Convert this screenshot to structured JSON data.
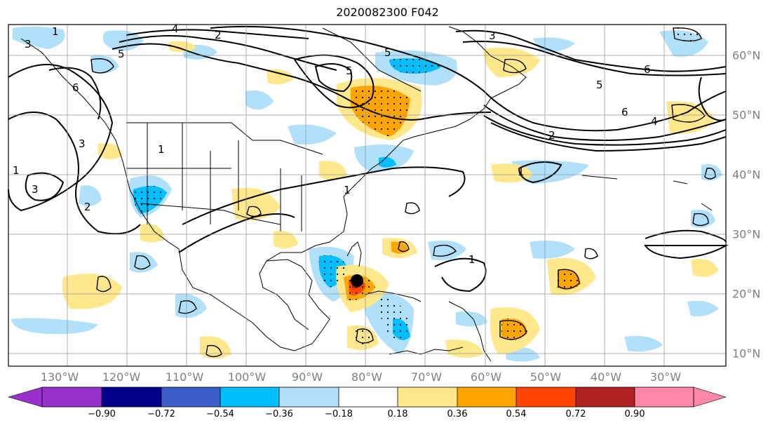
{
  "title": "2020082300 F042",
  "lon_labels": [
    "130°W",
    "120°W",
    "110°W",
    "100°W",
    "90°W",
    "80°W",
    "70°W",
    "60°W",
    "50°W",
    "40°W",
    "30°W"
  ],
  "lat_labels": [
    "60°N",
    "50°N",
    "40°N",
    "30°N",
    "20°N",
    "10°N"
  ],
  "colorbar": {
    "ticks": [
      "−0.90",
      "−0.72",
      "−0.54",
      "−0.36",
      "−0.18",
      "0.18",
      "0.36",
      "0.54",
      "0.72",
      "0.90"
    ],
    "colors": [
      "#9932cc",
      "#00008b",
      "#3a5fcd",
      "#00bfff",
      "#b0e0fa",
      "#ffffff",
      "#ffe88c",
      "#ffa500",
      "#ff4500",
      "#b22222",
      "#ff88aa"
    ]
  },
  "contour_labels": [
    "5",
    "6",
    "5",
    "6",
    "5",
    "4",
    "2",
    "3",
    "1",
    "1",
    "1",
    "1",
    "3",
    "2",
    "3",
    "1",
    "1",
    "2",
    "3",
    "4",
    "5",
    "6"
  ]
}
